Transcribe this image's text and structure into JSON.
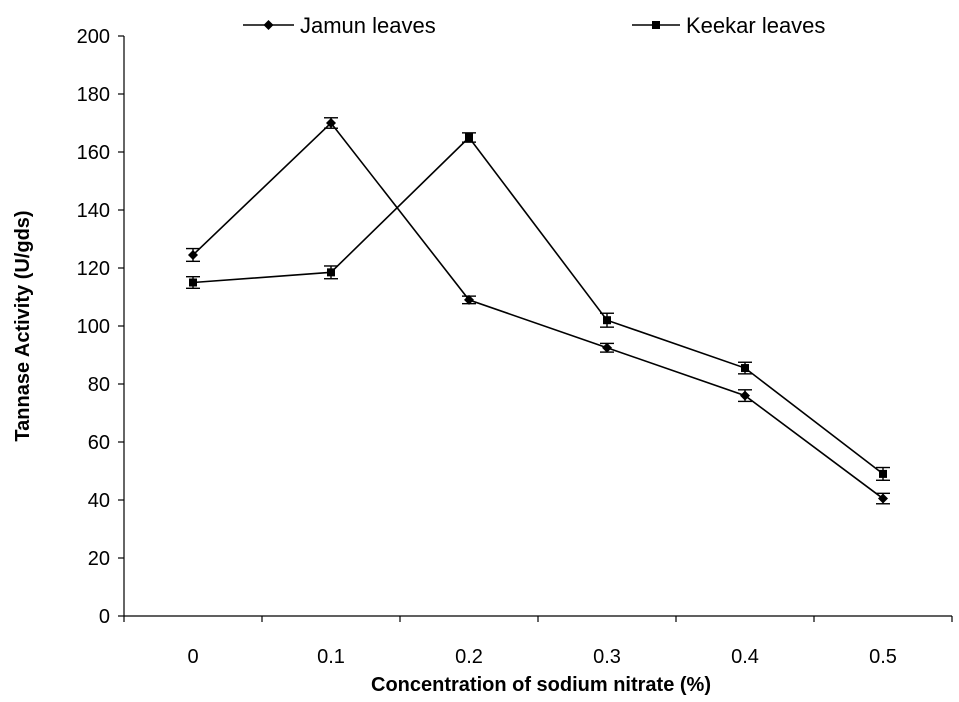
{
  "chart_data": {
    "type": "line",
    "title": "",
    "xlabel": "Concentration of sodium nitrate (%)",
    "ylabel": "Tannase Activity (U/gds)",
    "categories": [
      "0",
      "0.1",
      "0.2",
      "0.3",
      "0.4",
      "0.5"
    ],
    "ylim": [
      0,
      200
    ],
    "yticks": [
      0,
      20,
      40,
      60,
      80,
      100,
      120,
      140,
      160,
      180,
      200
    ],
    "grid": false,
    "legend_position": "top",
    "series": [
      {
        "name": "Jamun leaves",
        "marker": "diamond",
        "values": [
          124.5,
          170,
          109,
          92.5,
          76,
          40.5
        ],
        "errors": [
          2.2,
          1.8,
          1.3,
          1.5,
          2.0,
          1.8
        ]
      },
      {
        "name": "Keekar leaves",
        "marker": "square",
        "values": [
          115,
          118.5,
          165,
          102,
          85.5,
          49
        ],
        "errors": [
          2.0,
          2.2,
          1.6,
          2.4,
          2.0,
          2.2
        ]
      }
    ]
  }
}
